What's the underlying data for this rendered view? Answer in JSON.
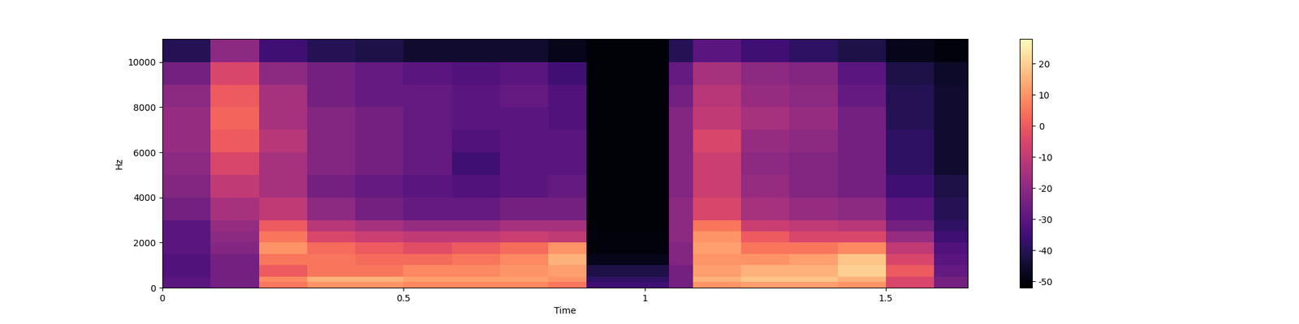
{
  "chart_data": {
    "type": "spectrogram",
    "x_label": "Time",
    "y_label": "Hz",
    "xlim": [
      0,
      1.67
    ],
    "xticks": [
      0,
      0.5,
      1,
      1.5
    ],
    "ylim": [
      0,
      11025
    ],
    "yticks": [
      0,
      2000,
      4000,
      6000,
      8000,
      10000
    ],
    "color": "magma",
    "x_edges": [
      0,
      0.1,
      0.2,
      0.3,
      0.4,
      0.5,
      0.6,
      0.7,
      0.8,
      0.88,
      1.05,
      1.1,
      1.2,
      1.3,
      1.4,
      1.5,
      1.6,
      1.67
    ],
    "y_edges": [
      0,
      250,
      500,
      1000,
      1500,
      2000,
      2500,
      3000,
      4000,
      5000,
      6000,
      7000,
      8000,
      9000,
      10000,
      11025
    ],
    "cells": [
      [
        -30,
        -25,
        5,
        10,
        10,
        8,
        8,
        8,
        5,
        -35,
        -25,
        10,
        12,
        12,
        10,
        -5,
        -25
      ],
      [
        -30,
        -25,
        8,
        15,
        15,
        12,
        12,
        12,
        10,
        -38,
        -25,
        15,
        18,
        18,
        15,
        -5,
        -25
      ],
      [
        -32,
        -25,
        0,
        5,
        5,
        8,
        8,
        10,
        12,
        -42,
        -25,
        12,
        15,
        15,
        20,
        0,
        -28
      ],
      [
        -32,
        -25,
        5,
        5,
        3,
        3,
        5,
        8,
        15,
        -48,
        -22,
        10,
        10,
        12,
        18,
        -5,
        -30
      ],
      [
        -30,
        -22,
        10,
        3,
        0,
        -3,
        0,
        3,
        10,
        -50,
        -22,
        12,
        5,
        5,
        8,
        -10,
        -32
      ],
      [
        -30,
        -20,
        5,
        -5,
        -8,
        -10,
        -10,
        -8,
        -10,
        -50,
        -20,
        10,
        0,
        -5,
        -5,
        -18,
        -35
      ],
      [
        -30,
        -18,
        0,
        -12,
        -15,
        -18,
        -18,
        -15,
        -15,
        -51,
        -20,
        5,
        -8,
        -10,
        -12,
        -25,
        -38
      ],
      [
        -25,
        -15,
        -10,
        -20,
        -25,
        -28,
        -28,
        -25,
        -25,
        -51,
        -20,
        -5,
        -15,
        -18,
        -20,
        -30,
        -40
      ],
      [
        -22,
        -10,
        -15,
        -25,
        -28,
        -30,
        -32,
        -30,
        -28,
        -51,
        -22,
        -8,
        -18,
        -22,
        -25,
        -35,
        -42
      ],
      [
        -20,
        -5,
        -15,
        -22,
        -25,
        -28,
        -35,
        -30,
        -30,
        -51,
        -22,
        -8,
        -20,
        -22,
        -25,
        -38,
        -45
      ],
      [
        -18,
        0,
        -12,
        -22,
        -25,
        -28,
        -32,
        -30,
        -30,
        -51,
        -22,
        -5,
        -18,
        -20,
        -25,
        -38,
        -45
      ],
      [
        -18,
        2,
        -15,
        -22,
        -25,
        -28,
        -30,
        -30,
        -32,
        -51,
        -22,
        -10,
        -15,
        -18,
        -25,
        -40,
        -45
      ],
      [
        -20,
        0,
        -15,
        -25,
        -28,
        -28,
        -30,
        -28,
        -32,
        -51,
        -25,
        -12,
        -18,
        -20,
        -28,
        -40,
        -45
      ],
      [
        -25,
        -5,
        -20,
        -25,
        -28,
        -30,
        -32,
        -30,
        -35,
        -51,
        -28,
        -15,
        -20,
        -22,
        -30,
        -42,
        -46
      ],
      [
        -40,
        -20,
        -35,
        -40,
        -42,
        -45,
        -45,
        -45,
        -48,
        -51,
        -40,
        -30,
        -35,
        -38,
        -42,
        -48,
        -50
      ]
    ],
    "colorbar_range": [
      -52,
      28
    ],
    "colorbar_ticks": [
      -50,
      -40,
      -30,
      -20,
      -10,
      0,
      10,
      20
    ]
  }
}
